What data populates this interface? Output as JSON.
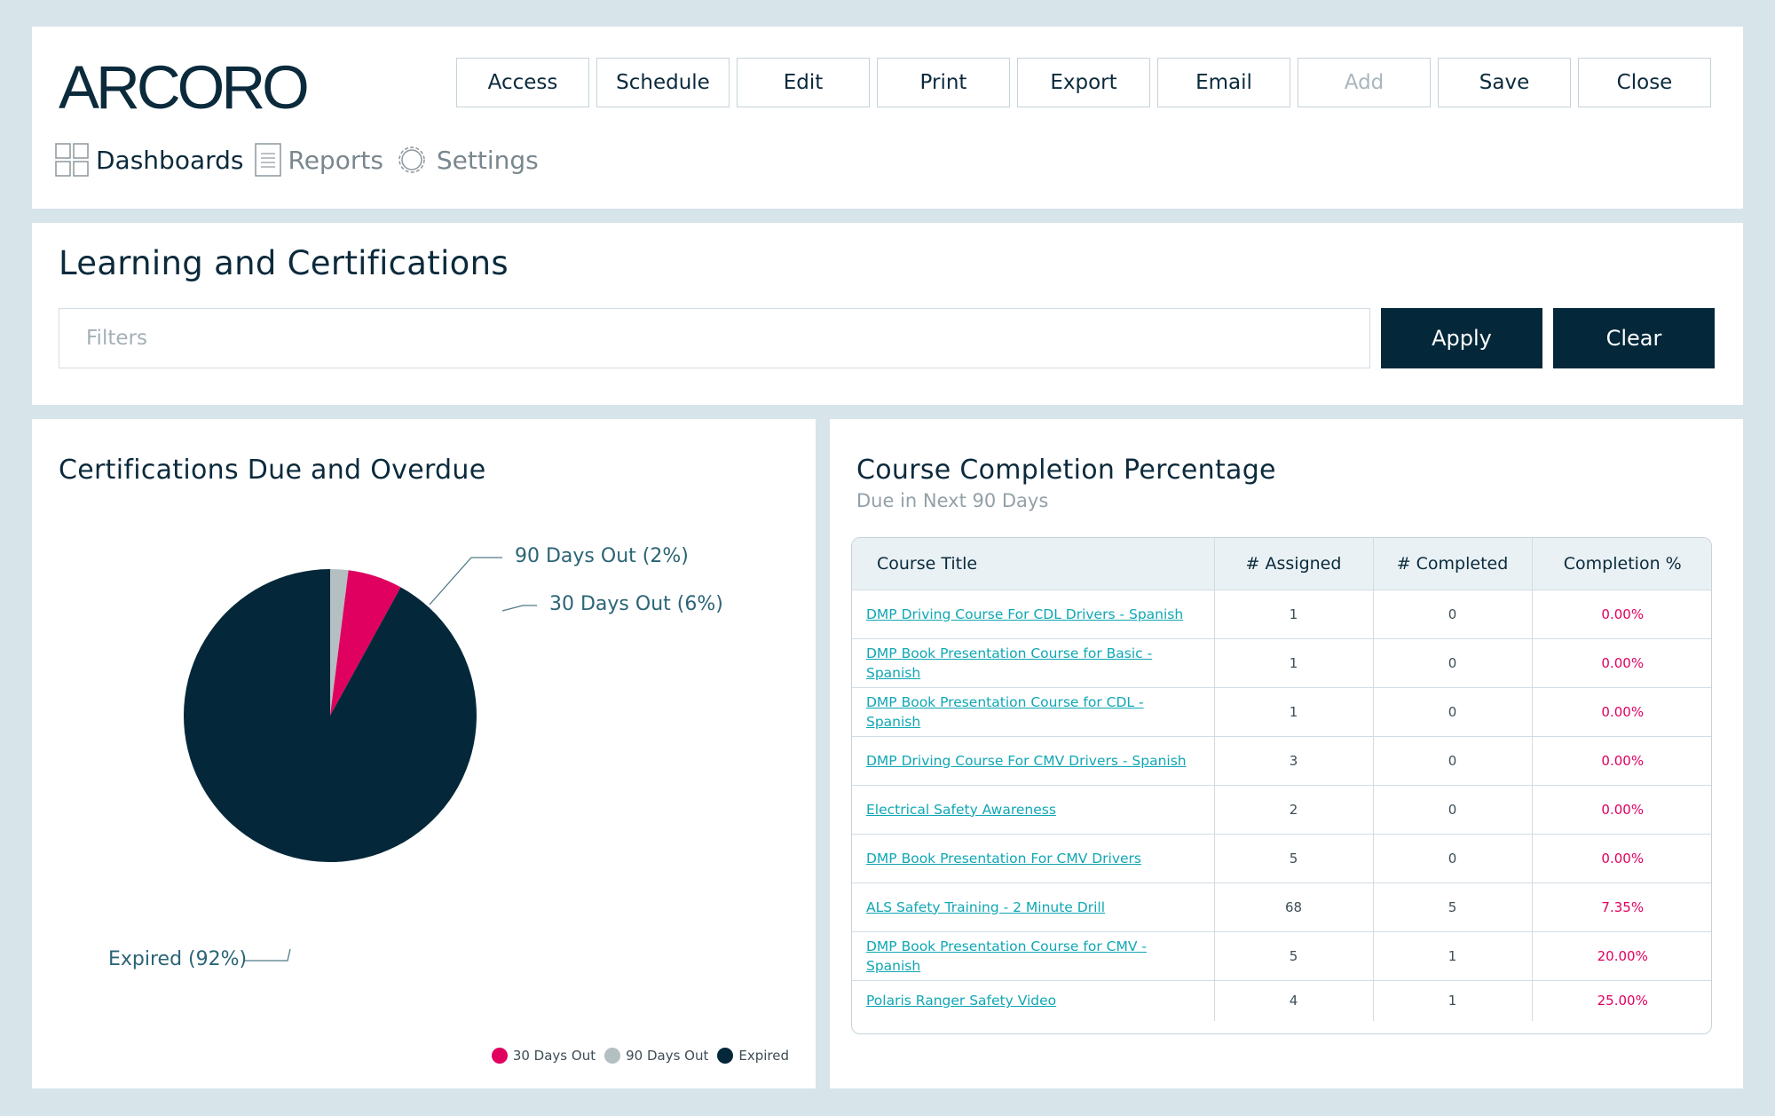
{
  "brand": {
    "logo_text": "ARCORO",
    "logo_color": "#0b2a3c"
  },
  "toolbar": {
    "buttons": [
      {
        "label": "Access",
        "enabled": true
      },
      {
        "label": "Schedule",
        "enabled": true
      },
      {
        "label": "Edit",
        "enabled": true
      },
      {
        "label": "Print",
        "enabled": true
      },
      {
        "label": "Export",
        "enabled": true
      },
      {
        "label": "Email",
        "enabled": true
      },
      {
        "label": "Add",
        "enabled": false
      },
      {
        "label": "Save",
        "enabled": true
      },
      {
        "label": "Close",
        "enabled": true
      }
    ]
  },
  "nav": {
    "items": [
      {
        "label": "Dashboards",
        "icon": "grid-icon",
        "active": true
      },
      {
        "label": "Reports",
        "icon": "document-icon",
        "active": false
      },
      {
        "label": "Settings",
        "icon": "gear-icon",
        "active": false
      }
    ]
  },
  "page": {
    "title": "Learning and Certifications",
    "filters_placeholder": "Filters",
    "apply_label": "Apply",
    "clear_label": "Clear"
  },
  "pie_panel": {
    "title": "Certifications Due and Overdue",
    "callouts": {
      "ninety": "90 Days Out (2%)",
      "thirty": "30 Days Out (6%)",
      "expired": "Expired (92%)"
    },
    "legend": [
      "30 Days Out",
      "90 Days Out",
      "Expired"
    ]
  },
  "chart_data": {
    "type": "pie",
    "title": "Certifications Due and Overdue",
    "slices": [
      {
        "label": "90 Days Out",
        "value": 2,
        "color": "#b4bfc2"
      },
      {
        "label": "30 Days Out",
        "value": 6,
        "color": "#e0005f"
      },
      {
        "label": "Expired",
        "value": 92,
        "color": "#04283a"
      }
    ],
    "legend_position": "bottom-right"
  },
  "table_panel": {
    "title": "Course Completion Percentage",
    "subtitle": "Due in Next 90 Days",
    "columns": [
      "Course Title",
      "#  Assigned",
      "#  Completed",
      "Completion %"
    ],
    "rows": [
      {
        "title": "DMP Driving Course For CDL Drivers - Spanish",
        "assigned": "1",
        "completed": "0",
        "pct": "0.00%"
      },
      {
        "title": "DMP Book Presentation Course for Basic - Spanish",
        "assigned": "1",
        "completed": "0",
        "pct": "0.00%"
      },
      {
        "title": "DMP Book Presentation Course for CDL - Spanish",
        "assigned": "1",
        "completed": "0",
        "pct": "0.00%"
      },
      {
        "title": "DMP Driving Course For CMV Drivers - Spanish",
        "assigned": "3",
        "completed": "0",
        "pct": "0.00%"
      },
      {
        "title": "Electrical Safety Awareness",
        "assigned": "2",
        "completed": "0",
        "pct": "0.00%"
      },
      {
        "title": "DMP Book Presentation For CMV Drivers",
        "assigned": "5",
        "completed": "0",
        "pct": "0.00%"
      },
      {
        "title": "ALS Safety Training - 2 Minute Drill",
        "assigned": "68",
        "completed": "5",
        "pct": "7.35%"
      },
      {
        "title": "DMP Book Presentation Course for CMV - Spanish",
        "assigned": "5",
        "completed": "1",
        "pct": "20.00%"
      },
      {
        "title": "Polaris Ranger Safety Video",
        "assigned": "4",
        "completed": "1",
        "pct": "25.00%"
      }
    ]
  }
}
